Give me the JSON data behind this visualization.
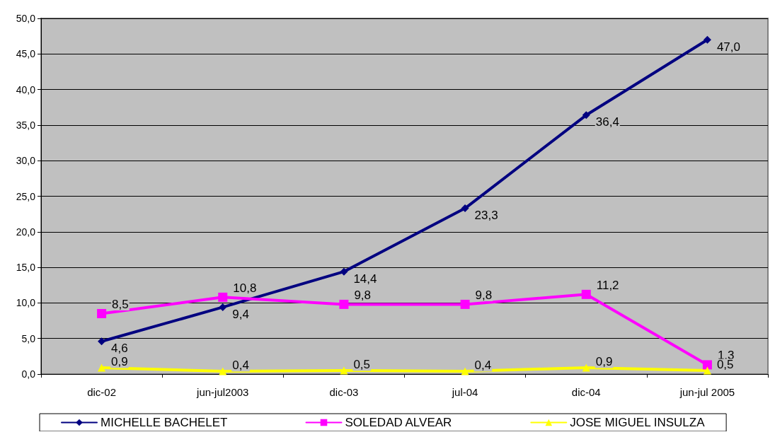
{
  "chart_data": {
    "type": "line",
    "categories": [
      "dic-02",
      "jun-jul2003",
      "dic-03",
      "jul-04",
      "dic-04",
      "jun-jul 2005"
    ],
    "series": [
      {
        "name": "MICHELLE BACHELET",
        "color": "#000080",
        "marker": "diamond",
        "values": [
          4.6,
          9.4,
          14.4,
          23.3,
          36.4,
          47.0
        ],
        "value_labels": [
          "4,6",
          "9,4",
          "14,4",
          "23,3",
          "36,4",
          "47,0"
        ]
      },
      {
        "name": "SOLEDAD ALVEAR",
        "color": "#ff00ff",
        "marker": "square",
        "values": [
          8.5,
          10.8,
          9.8,
          9.8,
          11.2,
          1.3
        ],
        "value_labels": [
          "8,5",
          "10,8",
          "9,8",
          "9,8",
          "11,2",
          "1,3"
        ]
      },
      {
        "name": "JOSE MIGUEL INSULZA",
        "color": "#ffff00",
        "marker": "triangle",
        "values": [
          0.9,
          0.4,
          0.5,
          0.4,
          0.9,
          0.5
        ],
        "value_labels": [
          "0,9",
          "0,4",
          "0,5",
          "0,4",
          "0,9",
          "0,5"
        ]
      }
    ],
    "ylim": [
      0,
      50
    ],
    "yticks": [
      {
        "value": 0,
        "label": "0,0"
      },
      {
        "value": 5,
        "label": "5,0"
      },
      {
        "value": 10,
        "label": "10,0"
      },
      {
        "value": 15,
        "label": "15,0"
      },
      {
        "value": 20,
        "label": "20,0"
      },
      {
        "value": 25,
        "label": "25,0"
      },
      {
        "value": 30,
        "label": "30,0"
      },
      {
        "value": 35,
        "label": "35,0"
      },
      {
        "value": 40,
        "label": "40,0"
      },
      {
        "value": 45,
        "label": "45,0"
      },
      {
        "value": 50,
        "label": "50,0"
      }
    ],
    "grid": "y",
    "legend": "bottom",
    "line_style": "solid"
  }
}
